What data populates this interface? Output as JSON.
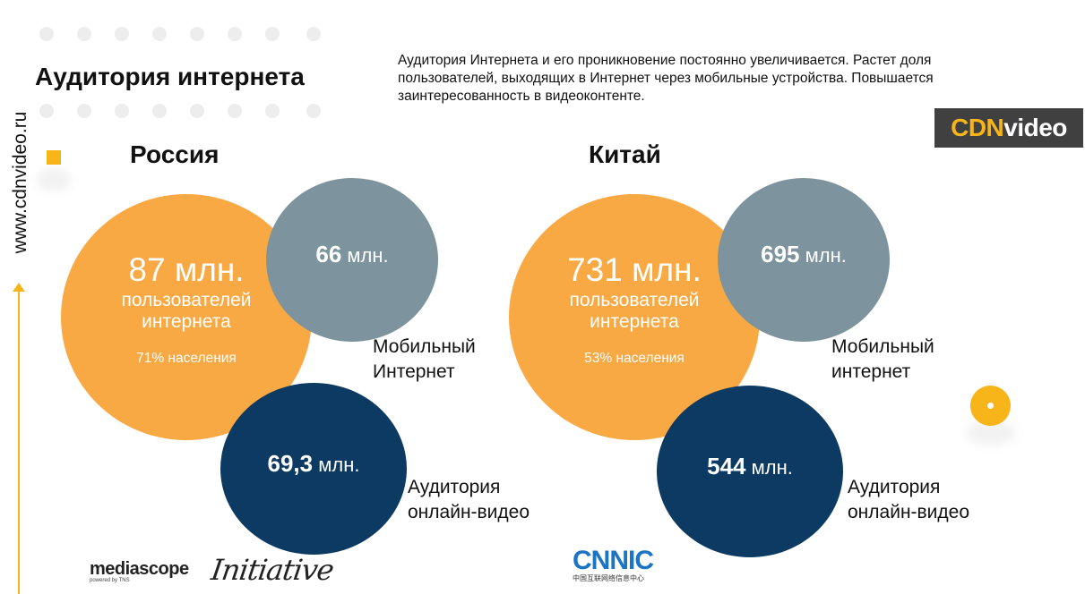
{
  "sidebar": {
    "site": "www.cdnvideo.ru"
  },
  "header": {
    "title": "Аудитория интернета",
    "description": "Аудитория Интернета и его проникновение постоянно увеличивается. Растет доля пользователей, выходящих в Интернет через мобильные устройства. Повышается заинтересованность в видеоконтенте."
  },
  "brand": {
    "logo_text_a": "CDN",
    "logo_text_b": "video"
  },
  "russia": {
    "name": "Россия",
    "users": "87 млн.",
    "users_label_1": "пользователей",
    "users_label_2": "интернета",
    "penetration": "71% населения",
    "mobile_num": "66",
    "mobile_unit": "млн.",
    "mobile_label_1": "Мобильный",
    "mobile_label_2": "Интернет",
    "video_num": "69,3",
    "video_unit": "млн.",
    "video_label_1": "Аудитория",
    "video_label_2": "онлайн-видео"
  },
  "china": {
    "name": "Китай",
    "users": "731 млн.",
    "users_label_1": "пользователей",
    "users_label_2": "интернета",
    "penetration": "53% населения",
    "mobile_num": "695",
    "mobile_unit": "млн.",
    "mobile_label_1": "Мобильный",
    "mobile_label_2": "интернет",
    "video_num": "544",
    "video_unit": "млн.",
    "video_label_1": "Аудитория",
    "video_label_2": "онлайн-видео"
  },
  "sources": {
    "mediascope": "mediascope",
    "mediascope_sub": "powered by TNS",
    "initiative": "Initiative",
    "cnnic": "CNNIC",
    "cnnic_sub": "中国互联网络信息中心"
  },
  "colors": {
    "orange": "#f9a944",
    "grey": "#7d939d",
    "navy": "#0c3a63",
    "accent": "#f7b51a"
  }
}
